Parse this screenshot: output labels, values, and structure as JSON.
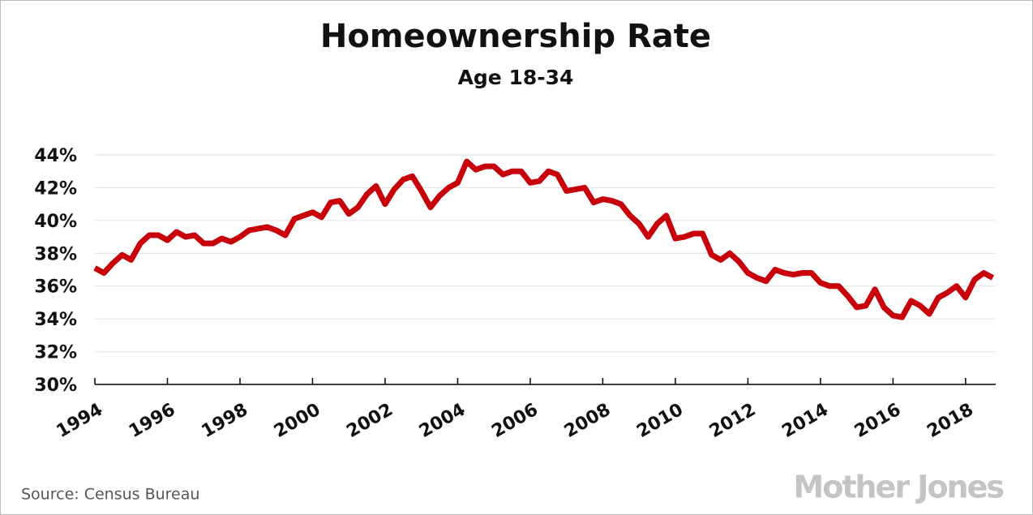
{
  "chart_data": {
    "type": "line",
    "title": "Homeownership Rate",
    "subtitle": "Age 18-34",
    "source": "Source:  Census Bureau",
    "brand": "Mother Jones",
    "x": [
      1994,
      1994.25,
      1994.5,
      1994.75,
      1995,
      1995.25,
      1995.5,
      1995.75,
      1996,
      1996.25,
      1996.5,
      1996.75,
      1997,
      1997.25,
      1997.5,
      1997.75,
      1998,
      1998.25,
      1998.5,
      1998.75,
      1999,
      1999.25,
      1999.5,
      1999.75,
      2000,
      2000.25,
      2000.5,
      2000.75,
      2001,
      2001.25,
      2001.5,
      2001.75,
      2002,
      2002.25,
      2002.5,
      2002.75,
      2003,
      2003.25,
      2003.5,
      2003.75,
      2004,
      2004.25,
      2004.5,
      2004.75,
      2005,
      2005.25,
      2005.5,
      2005.75,
      2006,
      2006.25,
      2006.5,
      2006.75,
      2007,
      2007.25,
      2007.5,
      2007.75,
      2008,
      2008.25,
      2008.5,
      2008.75,
      2009,
      2009.25,
      2009.5,
      2009.75,
      2010,
      2010.25,
      2010.5,
      2010.75,
      2011,
      2011.25,
      2011.5,
      2011.75,
      2012,
      2012.25,
      2012.5,
      2012.75,
      2013,
      2013.25,
      2013.5,
      2013.75,
      2014,
      2014.25,
      2014.5,
      2014.75,
      2015,
      2015.25,
      2015.5,
      2015.75,
      2016,
      2016.25,
      2016.5,
      2016.75,
      2017,
      2017.25,
      2017.5,
      2017.75,
      2018,
      2018.25,
      2018.5,
      2018.75
    ],
    "series": [
      {
        "color": "#c8000a",
        "values": [
          37.1,
          36.8,
          37.4,
          37.9,
          37.6,
          38.6,
          39.1,
          39.1,
          38.8,
          39.3,
          39.0,
          39.1,
          38.6,
          38.6,
          38.9,
          38.7,
          39.0,
          39.4,
          39.5,
          39.6,
          39.4,
          39.1,
          40.1,
          40.3,
          40.5,
          40.2,
          41.1,
          41.2,
          40.4,
          40.8,
          41.6,
          42.1,
          41.0,
          41.9,
          42.5,
          42.7,
          41.8,
          40.8,
          41.5,
          42.0,
          42.3,
          43.6,
          43.1,
          43.3,
          43.3,
          42.8,
          43.0,
          43.0,
          42.3,
          42.4,
          43.0,
          42.8,
          41.8,
          41.9,
          42.0,
          41.1,
          41.3,
          41.2,
          41.0,
          40.3,
          39.8,
          39.0,
          39.8,
          40.3,
          38.9,
          39.0,
          39.2,
          39.2,
          37.9,
          37.6,
          38.0,
          37.5,
          36.8,
          36.5,
          36.3,
          37.0,
          36.8,
          36.7,
          36.8,
          36.8,
          36.2,
          36.0,
          36.0,
          35.4,
          34.7,
          34.8,
          35.8,
          34.7,
          34.2,
          34.1,
          35.1,
          34.8,
          34.3,
          35.3,
          35.6,
          36.0,
          35.3,
          36.4,
          36.8,
          36.5
        ]
      }
    ],
    "xlim": [
      1994,
      2018.83
    ],
    "xticks": [
      1994,
      1996,
      1998,
      2000,
      2002,
      2004,
      2006,
      2008,
      2010,
      2012,
      2014,
      2016,
      2018
    ],
    "ylim": [
      30,
      44
    ],
    "yticks": [
      {
        "value": 30,
        "label": "30%"
      },
      {
        "value": 32,
        "label": "32%"
      },
      {
        "value": 34,
        "label": "34%"
      },
      {
        "value": 36,
        "label": "36%"
      },
      {
        "value": 38,
        "label": "38%"
      },
      {
        "value": 40,
        "label": "40%"
      },
      {
        "value": 42,
        "label": "42%"
      },
      {
        "value": 44,
        "label": "44%"
      }
    ],
    "grid": true
  }
}
